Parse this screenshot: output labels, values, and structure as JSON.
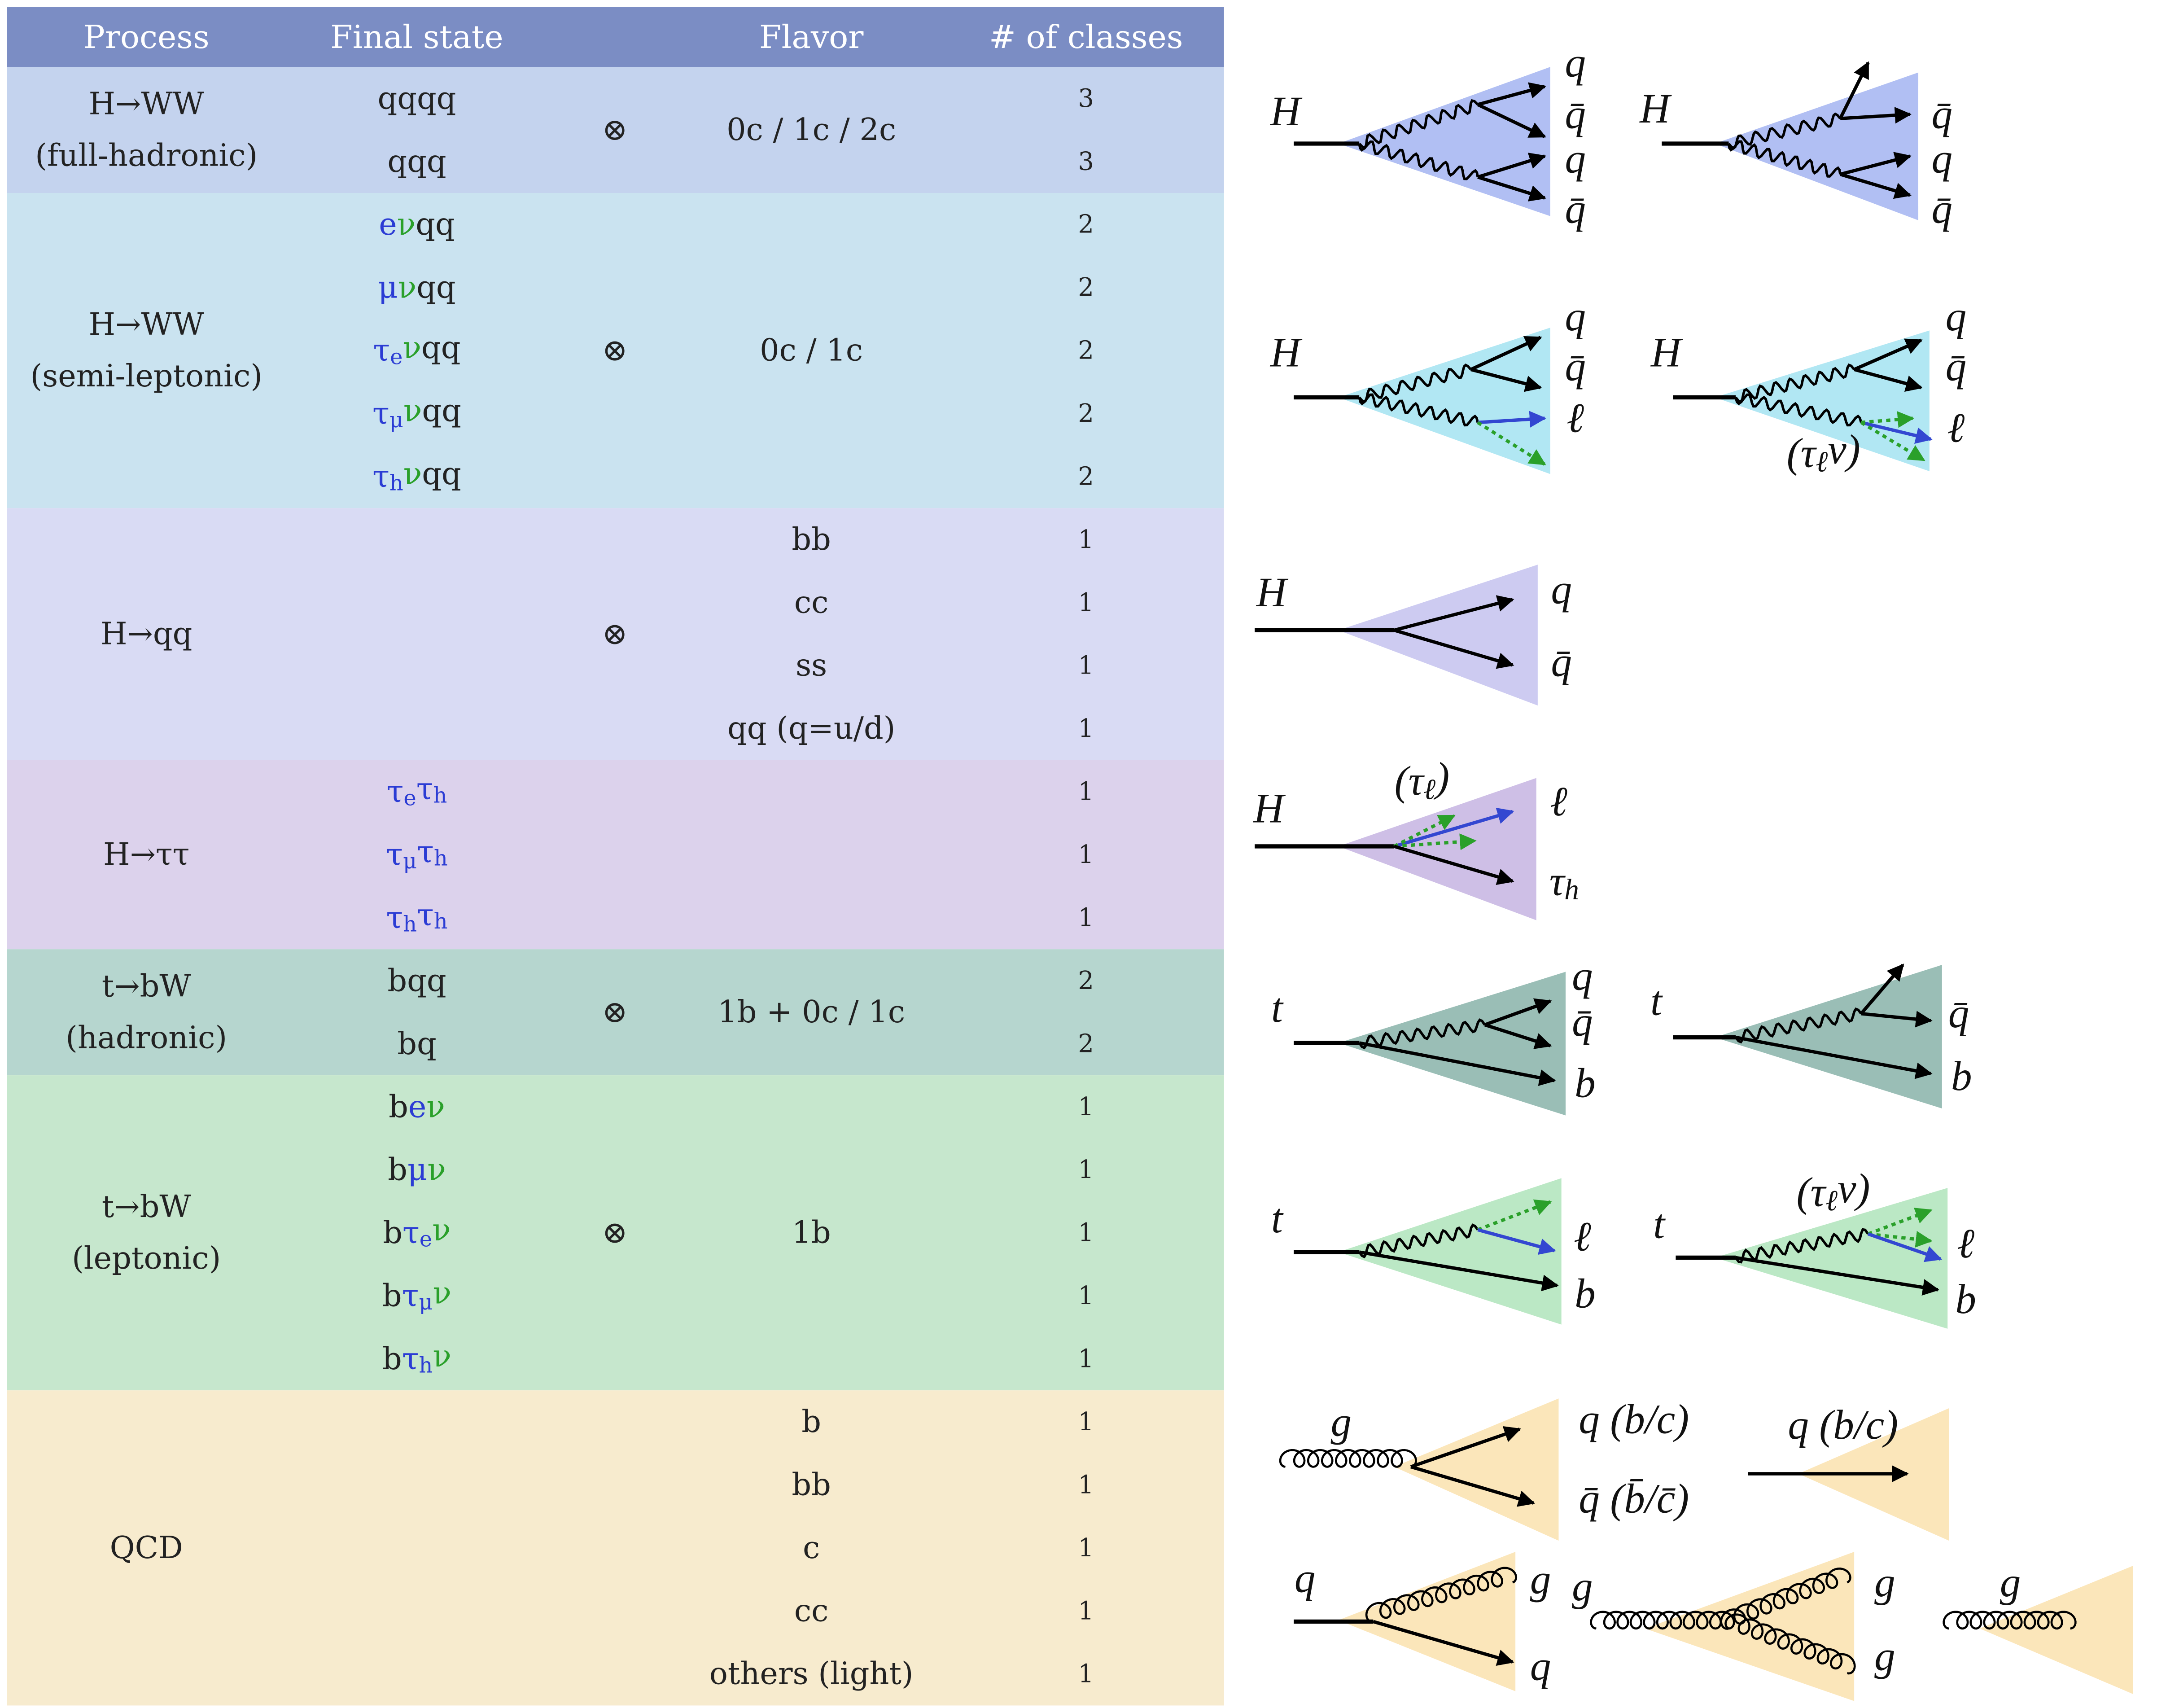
{
  "header": {
    "columns": [
      "Process",
      "Final state",
      "Flavor",
      "# of classes"
    ],
    "bg": "#7b8dc4"
  },
  "groups": [
    {
      "process": [
        "H→WW",
        "(full-hadronic)"
      ],
      "bg": "#c4d3ee",
      "otimes": "⊗",
      "flavor": "0c / 1c / 2c",
      "rows": [
        {
          "final": [
            {
              "t": "qqqq"
            }
          ],
          "classes": 3
        },
        {
          "final": [
            {
              "t": "qqq"
            }
          ],
          "classes": 3
        }
      ]
    },
    {
      "process": [
        "H→WW",
        "(semi-leptonic)"
      ],
      "bg": "#cae3f0",
      "otimes": "⊗",
      "flavor": "0c / 1c",
      "rows": [
        {
          "final": [
            {
              "t": "e",
              "c": "#2b3cd4"
            },
            {
              "t": "ν",
              "c": "#2aa02a"
            },
            {
              "t": "qq"
            }
          ],
          "classes": 2
        },
        {
          "final": [
            {
              "t": "μ",
              "c": "#2b3cd4"
            },
            {
              "t": "ν",
              "c": "#2aa02a"
            },
            {
              "t": "qq"
            }
          ],
          "classes": 2
        },
        {
          "final": [
            {
              "t": "τ",
              "c": "#2b3cd4"
            },
            {
              "t": "e",
              "c": "#2b3cd4",
              "sub": true
            },
            {
              "t": "ν",
              "c": "#2aa02a"
            },
            {
              "t": "qq"
            }
          ],
          "classes": 2
        },
        {
          "final": [
            {
              "t": "τ",
              "c": "#2b3cd4"
            },
            {
              "t": "μ",
              "c": "#2b3cd4",
              "sub": true
            },
            {
              "t": "ν",
              "c": "#2aa02a"
            },
            {
              "t": "qq"
            }
          ],
          "classes": 2
        },
        {
          "final": [
            {
              "t": "τ",
              "c": "#2b3cd4"
            },
            {
              "t": "h",
              "c": "#2b3cd4",
              "sub": true
            },
            {
              "t": "ν",
              "c": "#2aa02a"
            },
            {
              "t": "qq"
            }
          ],
          "classes": 2
        }
      ]
    },
    {
      "process": [
        "H→qq"
      ],
      "bg": "#d9dbf4",
      "otimes": "⊗",
      "rows": [
        {
          "flavor": "bb",
          "classes": 1
        },
        {
          "flavor": "cc",
          "classes": 1
        },
        {
          "flavor": "ss",
          "classes": 1
        },
        {
          "flavor": "qq (q=u/d)",
          "classes": 1
        }
      ]
    },
    {
      "process": [
        "H→ττ"
      ],
      "bg": "#dcd2ec",
      "rows": [
        {
          "final": [
            {
              "t": "τ",
              "c": "#2b3cd4"
            },
            {
              "t": "e",
              "c": "#2b3cd4",
              "sub": true
            },
            {
              "t": "τ",
              "c": "#2b3cd4"
            },
            {
              "t": "h",
              "c": "#2b3cd4",
              "sub": true
            }
          ],
          "classes": 1
        },
        {
          "final": [
            {
              "t": "τ",
              "c": "#2b3cd4"
            },
            {
              "t": "μ",
              "c": "#2b3cd4",
              "sub": true
            },
            {
              "t": "τ",
              "c": "#2b3cd4"
            },
            {
              "t": "h",
              "c": "#2b3cd4",
              "sub": true
            }
          ],
          "classes": 1
        },
        {
          "final": [
            {
              "t": "τ",
              "c": "#2b3cd4"
            },
            {
              "t": "h",
              "c": "#2b3cd4",
              "sub": true
            },
            {
              "t": "τ",
              "c": "#2b3cd4"
            },
            {
              "t": "h",
              "c": "#2b3cd4",
              "sub": true
            }
          ],
          "classes": 1
        }
      ]
    },
    {
      "process": [
        "t→bW",
        "(hadronic)"
      ],
      "bg": "#b6d6cf",
      "otimes": "⊗",
      "flavor": "1b + 0c / 1c",
      "rows": [
        {
          "final": [
            {
              "t": "bqq"
            }
          ],
          "classes": 2
        },
        {
          "final": [
            {
              "t": "bq"
            }
          ],
          "classes": 2
        }
      ]
    },
    {
      "process": [
        "t→bW",
        "(leptonic)"
      ],
      "bg": "#c6e7cd",
      "otimes": "⊗",
      "flavor": "1b",
      "rows": [
        {
          "final": [
            {
              "t": "b"
            },
            {
              "t": "e",
              "c": "#2b3cd4"
            },
            {
              "t": "ν",
              "c": "#2aa02a"
            }
          ],
          "classes": 1
        },
        {
          "final": [
            {
              "t": "b"
            },
            {
              "t": "μ",
              "c": "#2b3cd4"
            },
            {
              "t": "ν",
              "c": "#2aa02a"
            }
          ],
          "classes": 1
        },
        {
          "final": [
            {
              "t": "b"
            },
            {
              "t": "τ",
              "c": "#2b3cd4"
            },
            {
              "t": "e",
              "c": "#2b3cd4",
              "sub": true
            },
            {
              "t": "ν",
              "c": "#2aa02a"
            }
          ],
          "classes": 1
        },
        {
          "final": [
            {
              "t": "b"
            },
            {
              "t": "τ",
              "c": "#2b3cd4"
            },
            {
              "t": "μ",
              "c": "#2b3cd4",
              "sub": true
            },
            {
              "t": "ν",
              "c": "#2aa02a"
            }
          ],
          "classes": 1
        },
        {
          "final": [
            {
              "t": "b"
            },
            {
              "t": "τ",
              "c": "#2b3cd4"
            },
            {
              "t": "h",
              "c": "#2b3cd4",
              "sub": true
            },
            {
              "t": "ν",
              "c": "#2aa02a"
            }
          ],
          "classes": 1
        }
      ]
    },
    {
      "process": [
        "QCD"
      ],
      "bg": "#f7ebce",
      "rows": [
        {
          "flavor": "b",
          "classes": 1
        },
        {
          "flavor": "bb",
          "classes": 1
        },
        {
          "flavor": "c",
          "classes": 1
        },
        {
          "flavor": "cc",
          "classes": 1
        },
        {
          "flavor": "others (light)",
          "classes": 1
        }
      ]
    }
  ],
  "diagrams": [
    {
      "cone_color": "#a9b8f2",
      "labels": [
        "H",
        "q",
        "q̄",
        "q",
        "q̄"
      ]
    },
    {
      "cone_color": "#a9b8f2",
      "labels": [
        "H",
        "q̄",
        "q",
        "q̄"
      ]
    },
    {
      "cone_color": "#a8e4f2",
      "labels": [
        "H",
        "q",
        "q̄",
        "ℓ"
      ]
    },
    {
      "cone_color": "#a8e4f2",
      "labels": [
        "H",
        "q",
        "q̄",
        "ℓ",
        [
          {
            "t": "(τ"
          },
          {
            "t": "ℓ",
            "sub": true
          },
          {
            "t": "ν)"
          }
        ]
      ]
    },
    {
      "cone_color": "#c8c5ef",
      "labels": [
        "H",
        "q",
        "q̄"
      ]
    },
    {
      "cone_color": "#c9b8e3",
      "labels": [
        "H",
        [
          {
            "t": "(τ"
          },
          {
            "t": "ℓ",
            "sub": true
          },
          {
            "t": ")"
          }
        ],
        "ℓ",
        [
          {
            "t": "τ"
          },
          {
            "t": "h",
            "sub": true
          }
        ]
      ]
    },
    {
      "cone_color": "#8fb7ae",
      "labels": [
        "t",
        "q",
        "q̄",
        "b"
      ]
    },
    {
      "cone_color": "#8fb7ae",
      "labels": [
        "t",
        "q̄",
        "b"
      ]
    },
    {
      "cone_color": "#b4e6bf",
      "labels": [
        "t",
        "ℓ",
        "b"
      ]
    },
    {
      "cone_color": "#b4e6bf",
      "labels": [
        "t",
        [
          {
            "t": "(τ"
          },
          {
            "t": "ℓ",
            "sub": true
          },
          {
            "t": "ν)"
          }
        ],
        "ℓ",
        "b"
      ]
    },
    {
      "cone_color": "#fbe3b2",
      "labels": [
        "g",
        "q (b/c)",
        "q̄ (b̄/c̄)"
      ]
    },
    {
      "cone_color": "#fbe3b2",
      "labels": [
        "q (b/c)"
      ]
    },
    {
      "cone_color": "#fbe3b2",
      "labels": [
        "q",
        "g",
        "q"
      ]
    },
    {
      "cone_color": "#fbe3b2",
      "labels": [
        "g",
        "g",
        "g"
      ]
    },
    {
      "cone_color": "#fbe3b2",
      "labels": [
        "g"
      ]
    }
  ]
}
